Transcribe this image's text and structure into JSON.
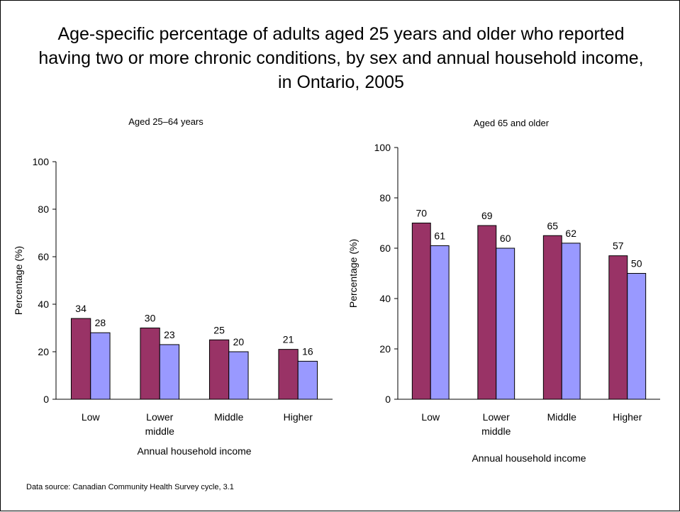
{
  "title": "Age-specific percentage of adults aged 25 years and older who reported having two or more chronic conditions, by sex and annual household income, in Ontario, 2005",
  "source": "Data source: Canadian Community Health Survey cycle, 3.1",
  "colors": {
    "series_1": "#993366",
    "series_2": "#9999FF"
  },
  "chart_data": [
    {
      "type": "bar",
      "title": "Aged 25–64 years",
      "xlabel": "Annual household income",
      "ylabel": "Percentage (%)",
      "ylim": [
        0,
        100
      ],
      "yticks": [
        0,
        20,
        40,
        60,
        80,
        100
      ],
      "categories": [
        "Low",
        "Lower middle",
        "Middle",
        "Higher"
      ],
      "category_lines": [
        [
          "Low"
        ],
        [
          "Lower",
          "middle"
        ],
        [
          "Middle"
        ],
        [
          "Higher"
        ]
      ],
      "series": [
        {
          "values": [
            34,
            30,
            25,
            21
          ],
          "color": "#993366"
        },
        {
          "values": [
            28,
            23,
            20,
            16
          ],
          "color": "#9999FF"
        }
      ],
      "data_labels": true,
      "grid": false,
      "legend": "none"
    },
    {
      "type": "bar",
      "title": "Aged 65 and older",
      "xlabel": "Annual household income",
      "ylabel": "Percentage (%)",
      "ylim": [
        0,
        100
      ],
      "yticks": [
        0,
        20,
        40,
        60,
        80,
        100
      ],
      "categories": [
        "Low",
        "Lower middle",
        "Middle",
        "Higher"
      ],
      "category_lines": [
        [
          "Low"
        ],
        [
          "Lower",
          "middle"
        ],
        [
          "Middle"
        ],
        [
          "Higher"
        ]
      ],
      "series": [
        {
          "values": [
            70,
            69,
            65,
            57
          ],
          "color": "#993366"
        },
        {
          "values": [
            61,
            60,
            62,
            50
          ],
          "color": "#9999FF"
        }
      ],
      "data_labels": true,
      "grid": false,
      "legend": "none"
    }
  ]
}
